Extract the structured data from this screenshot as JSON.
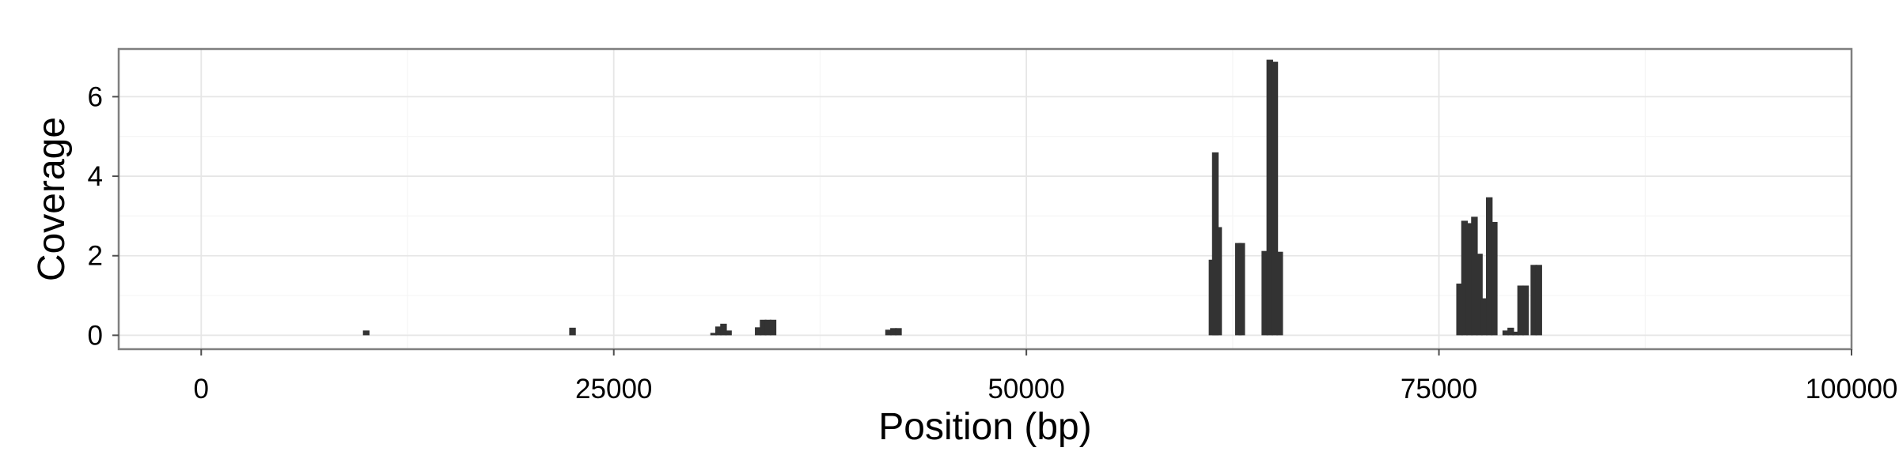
{
  "chart_data": {
    "type": "bar",
    "title": "",
    "xlabel": "Position (bp)",
    "ylabel": "Coverage",
    "xlim": [
      -5000,
      100000
    ],
    "ylim": [
      -0.35,
      7.2
    ],
    "x_ticks": [
      0,
      25000,
      50000,
      75000,
      100000
    ],
    "x_tick_labels": [
      "0",
      "25000",
      "50000",
      "75000",
      "100000"
    ],
    "y_ticks": [
      0,
      2,
      4,
      6
    ],
    "y_tick_labels": [
      "0",
      "2",
      "4",
      "6"
    ],
    "grid": true,
    "legend": "none",
    "bar_width": 400,
    "bar_color": "#333333",
    "grid_major_color": "#e6e6e6",
    "grid_minor_color": "#f5f5f5",
    "panel_border_color": "#7f7f7f",
    "x": [
      10000,
      22500,
      31050,
      31350,
      31650,
      31950,
      33750,
      34050,
      34350,
      34650,
      41650,
      41950,
      42250,
      61250,
      61450,
      61650,
      62850,
      63050,
      64450,
      64750,
      65050,
      65350,
      76250,
      76550,
      76850,
      77150,
      77450,
      77750,
      78050,
      78350,
      79050,
      79350,
      79650,
      79950,
      80250,
      80750,
      81050
    ],
    "values": [
      0.12,
      0.19,
      0.06,
      0.22,
      0.29,
      0.12,
      0.2,
      0.39,
      0.39,
      0.39,
      0.14,
      0.18,
      0.18,
      1.9,
      4.6,
      2.72,
      2.32,
      2.32,
      2.12,
      6.93,
      6.88,
      2.1,
      1.3,
      2.88,
      2.82,
      2.98,
      2.05,
      0.93,
      3.47,
      2.85,
      0.12,
      0.19,
      0.09,
      1.25,
      1.25,
      1.77,
      1.77
    ]
  }
}
